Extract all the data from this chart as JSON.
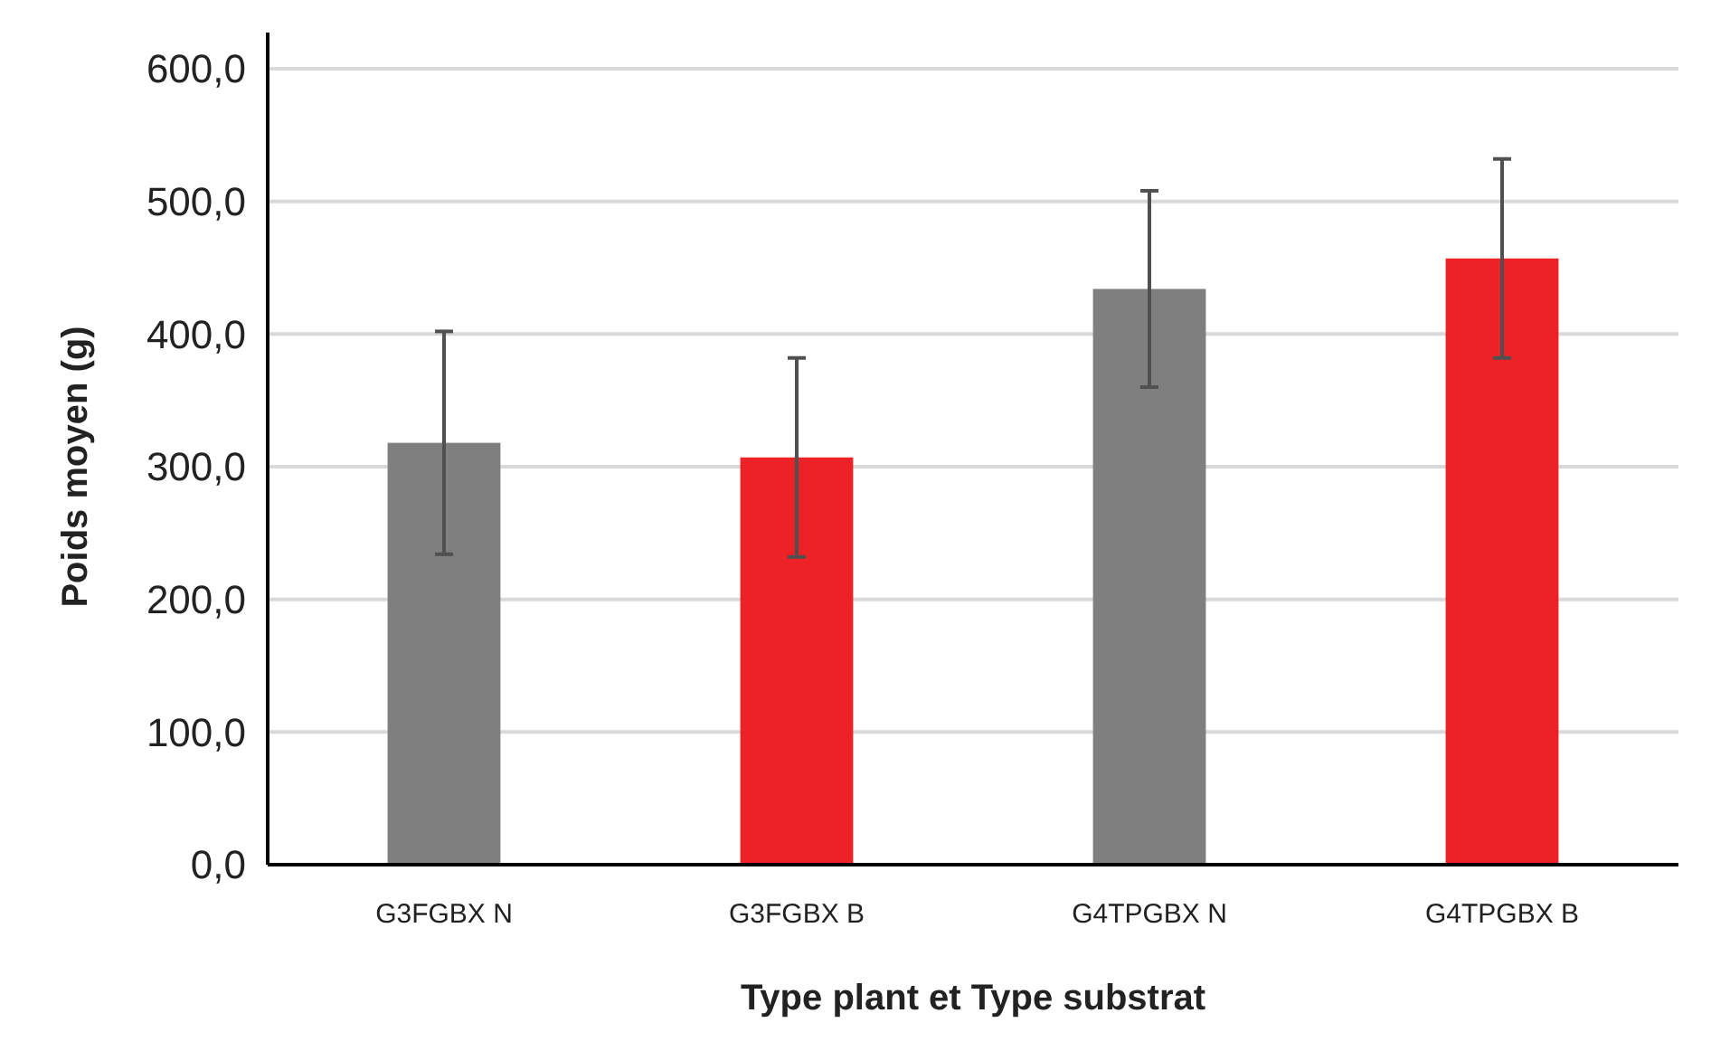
{
  "chart_data": {
    "type": "bar",
    "xlabel": "Type plant et Type substrat",
    "ylabel": "Poids moyen (g)",
    "categories": [
      "G3FGBX N",
      "G3FGBX B",
      "G4TPGBX N",
      "G4TPGBX B"
    ],
    "values": [
      318,
      307,
      434,
      457
    ],
    "errors": [
      84,
      75,
      74,
      75
    ],
    "colors": [
      "#7f7f7f",
      "#ec2226",
      "#7f7f7f",
      "#ec2226"
    ],
    "ylim": [
      0,
      600
    ],
    "yticks": [
      {
        "value": 0,
        "label": "0,0"
      },
      {
        "value": 100,
        "label": "100,0"
      },
      {
        "value": 200,
        "label": "200,0"
      },
      {
        "value": 300,
        "label": "300,0"
      },
      {
        "value": 400,
        "label": "400,0"
      },
      {
        "value": 500,
        "label": "500,0"
      },
      {
        "value": 600,
        "label": "600,0"
      }
    ],
    "grid": "y"
  }
}
